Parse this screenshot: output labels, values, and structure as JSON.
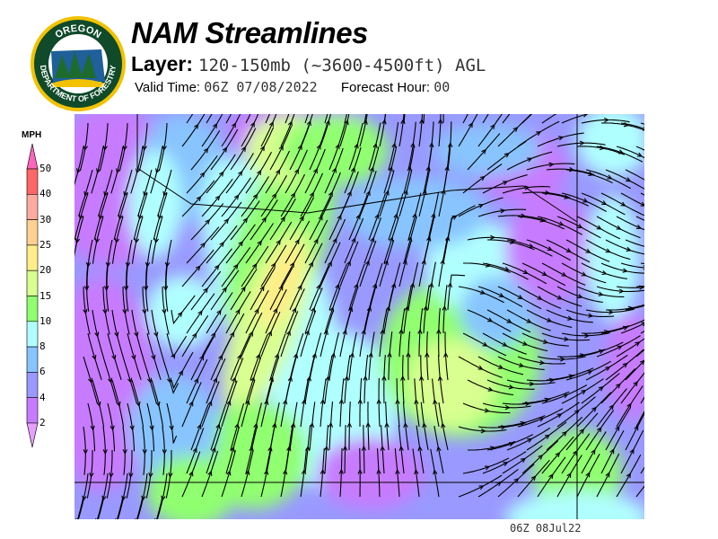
{
  "header": {
    "title": "NAM Streamlines",
    "layer_label": "Layer:",
    "layer_value": "120-150mb (~3600-4500ft) AGL",
    "valid_label": "Valid Time:",
    "valid_value": "06Z 07/08/2022",
    "forecast_label": "Forecast Hour:",
    "forecast_value": "00"
  },
  "logo": {
    "text_top": "OREGON",
    "text_bottom": "DEPARTMENT OF FORESTRY",
    "colors": {
      "ring": "#f2c200",
      "field": "#0f4a2a"
    }
  },
  "legend": {
    "units": "MPH",
    "ticks": [
      "50",
      "40",
      "30",
      "25",
      "20",
      "15",
      "10",
      "8",
      "6",
      "4",
      "2"
    ],
    "colors": [
      "#ff66bb",
      "#ff6666",
      "#ffaaa0",
      "#ffd090",
      "#ffee88",
      "#d8ff90",
      "#90ff70",
      "#b0ffff",
      "#88c4ff",
      "#9999ff",
      "#c77cff",
      "#e8a0ff"
    ]
  },
  "map": {
    "content": "wind speed shading with streamlines over Oregon"
  },
  "footer": {
    "timestamp": "06Z 08Jul22"
  }
}
